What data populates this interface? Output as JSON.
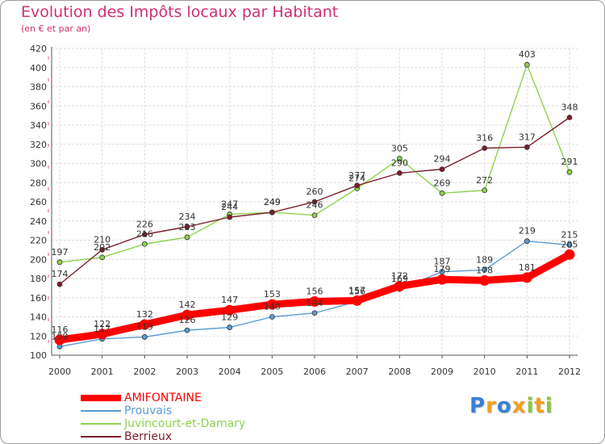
{
  "chart_data": {
    "type": "line",
    "title": "Evolution des Impôts locaux par Habitant",
    "subtitle": "(en € et par an)",
    "x": [
      "2000",
      "2001",
      "2002",
      "2003",
      "2004",
      "2005",
      "2006",
      "2007",
      "2008",
      "2009",
      "2010",
      "2011",
      "2012"
    ],
    "ylim": [
      100,
      420
    ],
    "yticks": [
      100,
      120,
      140,
      160,
      180,
      200,
      220,
      240,
      260,
      280,
      300,
      320,
      340,
      360,
      380,
      400,
      420
    ],
    "grid": true,
    "legend_position": "bottom-left",
    "series": [
      {
        "name": "AMIFONTAINE",
        "color": "#ff0000",
        "values": [
          116,
          122,
          132,
          142,
          147,
          153,
          156,
          157,
          172,
          179,
          178,
          181,
          205
        ]
      },
      {
        "name": "Prouvais",
        "color": "#5a9bd5",
        "values": [
          109,
          117,
          119,
          126,
          129,
          140,
          144,
          156,
          169,
          187,
          189,
          219,
          215
        ]
      },
      {
        "name": "Juvincourt-et-Damary",
        "color": "#8fd14f",
        "values": [
          197,
          202,
          216,
          223,
          247,
          249,
          246,
          274,
          305,
          269,
          272,
          403,
          291
        ]
      },
      {
        "name": "Berrieux",
        "color": "#7b1f2a",
        "values": [
          174,
          210,
          226,
          234,
          244,
          249,
          260,
          277,
          290,
          294,
          316,
          317,
          348
        ]
      }
    ]
  },
  "legend": {
    "items": [
      {
        "label": "AMIFONTAINE",
        "color": "#ff0000"
      },
      {
        "label": "Prouvais",
        "color": "#5a9bd5"
      },
      {
        "label": "Juvincourt-et-Damary",
        "color": "#8fd14f"
      },
      {
        "label": "Berrieux",
        "color": "#7b1f2a"
      }
    ]
  },
  "logo": {
    "letters": [
      "P",
      "r",
      "o",
      "x",
      "i",
      "t",
      "i"
    ],
    "colors": [
      "#3b7fd4",
      "#f0a01e",
      "#3b7fd4",
      "#f0a01e",
      "#8cc63f",
      "#f0a01e",
      "#8cc63f"
    ]
  }
}
